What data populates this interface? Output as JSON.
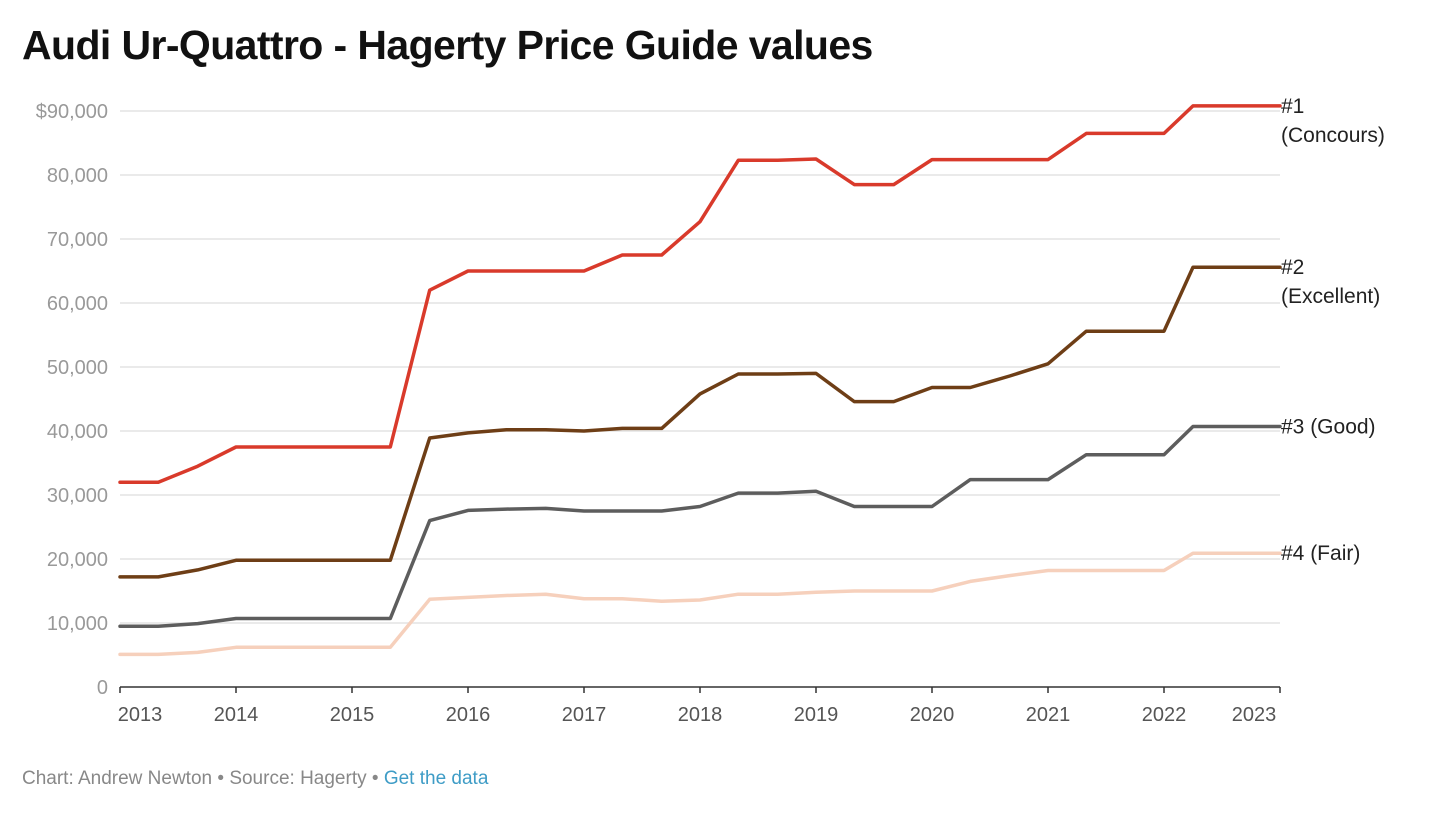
{
  "footer": {
    "chart_credit": "Chart: Andrew Newton",
    "separator": " • ",
    "source": "Source: Hagerty",
    "link_label": "Get the data"
  },
  "chart_data": {
    "type": "line",
    "title": "Audi Ur-Quattro - Hagerty Price Guide values",
    "xlabel": "",
    "ylabel": "",
    "xlim": [
      2013,
      2023
    ],
    "ylim": [
      0,
      90000
    ],
    "x_ticks": [
      "2013",
      "2014",
      "2015",
      "2016",
      "2017",
      "2018",
      "2019",
      "2020",
      "2021",
      "2022",
      "2023"
    ],
    "y_ticks": [
      {
        "value": 0,
        "label": "0"
      },
      {
        "value": 10000,
        "label": "10,000"
      },
      {
        "value": 20000,
        "label": "20,000"
      },
      {
        "value": 30000,
        "label": "30,000"
      },
      {
        "value": 40000,
        "label": "40,000"
      },
      {
        "value": 50000,
        "label": "50,000"
      },
      {
        "value": 60000,
        "label": "60,000"
      },
      {
        "value": 70000,
        "label": "70,000"
      },
      {
        "value": 80000,
        "label": "80,000"
      },
      {
        "value": 90000,
        "label": "$90,000"
      }
    ],
    "grid": true,
    "legend": "direct labels at right end of lines",
    "x": [
      2013,
      2013.33,
      2013.67,
      2014,
      2014.33,
      2014.67,
      2015,
      2015.33,
      2015.67,
      2016,
      2016.33,
      2016.67,
      2017,
      2017.33,
      2017.67,
      2018,
      2018.33,
      2018.67,
      2019,
      2019.33,
      2019.67,
      2020,
      2020.33,
      2020.67,
      2021,
      2021.33,
      2021.67,
      2022,
      2022.25,
      2022.67,
      2023
    ],
    "series": [
      {
        "name": "#1 (Concours)",
        "label_lines": [
          "#1",
          "(Concours)"
        ],
        "color": "#d93a2b",
        "values": [
          32000,
          32000,
          34500,
          37500,
          37500,
          37500,
          37500,
          37500,
          62000,
          65000,
          65000,
          65000,
          65000,
          67500,
          67500,
          72700,
          82300,
          82300,
          82500,
          78500,
          78500,
          82400,
          82400,
          82400,
          82400,
          86500,
          86500,
          86500,
          90800,
          90800,
          90800
        ]
      },
      {
        "name": "#2 (Excellent)",
        "label_lines": [
          "#2",
          "(Excellent)"
        ],
        "color": "#6e3e16",
        "values": [
          17200,
          17200,
          18300,
          19800,
          19800,
          19800,
          19800,
          19800,
          38900,
          39700,
          40200,
          40200,
          40000,
          40400,
          40400,
          45800,
          48900,
          48900,
          49000,
          44600,
          44600,
          46800,
          46800,
          48600,
          50500,
          55600,
          55600,
          55600,
          65600,
          65600,
          65600
        ]
      },
      {
        "name": "#3 (Good)",
        "label_lines": [
          "#3 (Good)"
        ],
        "color": "#5d5d5d",
        "values": [
          9500,
          9500,
          9900,
          10700,
          10700,
          10700,
          10700,
          10700,
          26000,
          27600,
          27800,
          27900,
          27500,
          27500,
          27500,
          28200,
          30300,
          30300,
          30600,
          28200,
          28200,
          28200,
          32400,
          32400,
          32400,
          36300,
          36300,
          36300,
          40700,
          40700,
          40700
        ]
      },
      {
        "name": "#4 (Fair)",
        "label_lines": [
          "#4 (Fair)"
        ],
        "color": "#f6d0bc",
        "values": [
          5100,
          5100,
          5400,
          6200,
          6200,
          6200,
          6200,
          6200,
          13700,
          14000,
          14300,
          14500,
          13800,
          13800,
          13400,
          13600,
          14500,
          14500,
          14800,
          15000,
          15000,
          15000,
          16500,
          17400,
          18200,
          18200,
          18200,
          18200,
          20900,
          20900,
          20900
        ]
      }
    ]
  }
}
